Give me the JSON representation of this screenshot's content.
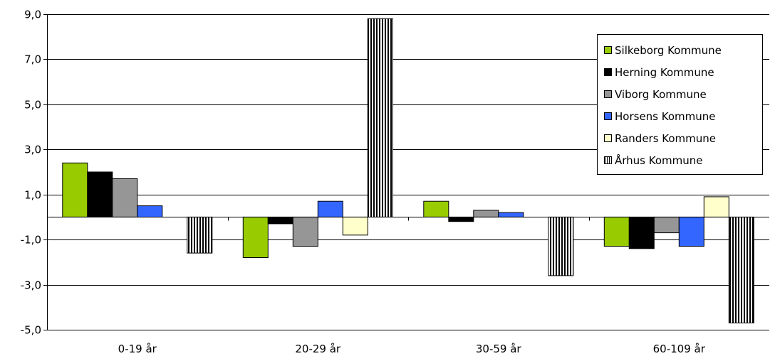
{
  "chart_data": {
    "type": "bar",
    "title": "",
    "xlabel": "",
    "ylabel": "",
    "categories": [
      "0-19 år",
      "20-29 år",
      "30-59 år",
      "60-109 år"
    ],
    "ylim": [
      -5.0,
      9.0
    ],
    "yticks": [
      "9,0",
      "7,0",
      "5,0",
      "3,0",
      "1,0",
      "-1,0",
      "-3,0",
      "-5,0"
    ],
    "ytick_values": [
      9,
      7,
      5,
      3,
      1,
      -1,
      -3,
      -5
    ],
    "grid": true,
    "legend_position": "top-right",
    "series": [
      {
        "name": "Silkeborg Kommune",
        "color": "#99cc00",
        "pattern": "solid",
        "values": [
          2.4,
          -1.8,
          0.7,
          -1.3
        ]
      },
      {
        "name": "Herning Kommune",
        "color": "#000000",
        "pattern": "solid",
        "values": [
          2.0,
          -0.3,
          -0.2,
          -1.4
        ]
      },
      {
        "name": "Viborg Kommune",
        "color": "#969696",
        "pattern": "solid",
        "values": [
          1.7,
          -1.3,
          0.3,
          -0.7
        ]
      },
      {
        "name": "Horsens Kommune",
        "color": "#3366ff",
        "pattern": "solid",
        "values": [
          0.5,
          0.7,
          0.2,
          -1.3
        ]
      },
      {
        "name": "Randers Kommune",
        "color": "#ffffcc",
        "pattern": "solid",
        "values": [
          0.0,
          -0.8,
          0.0,
          0.9
        ]
      },
      {
        "name": "Århus Kommune",
        "color": "#ffffff",
        "pattern": "vertical-stripes",
        "values": [
          -1.6,
          8.8,
          -2.6,
          -4.7
        ]
      }
    ]
  }
}
